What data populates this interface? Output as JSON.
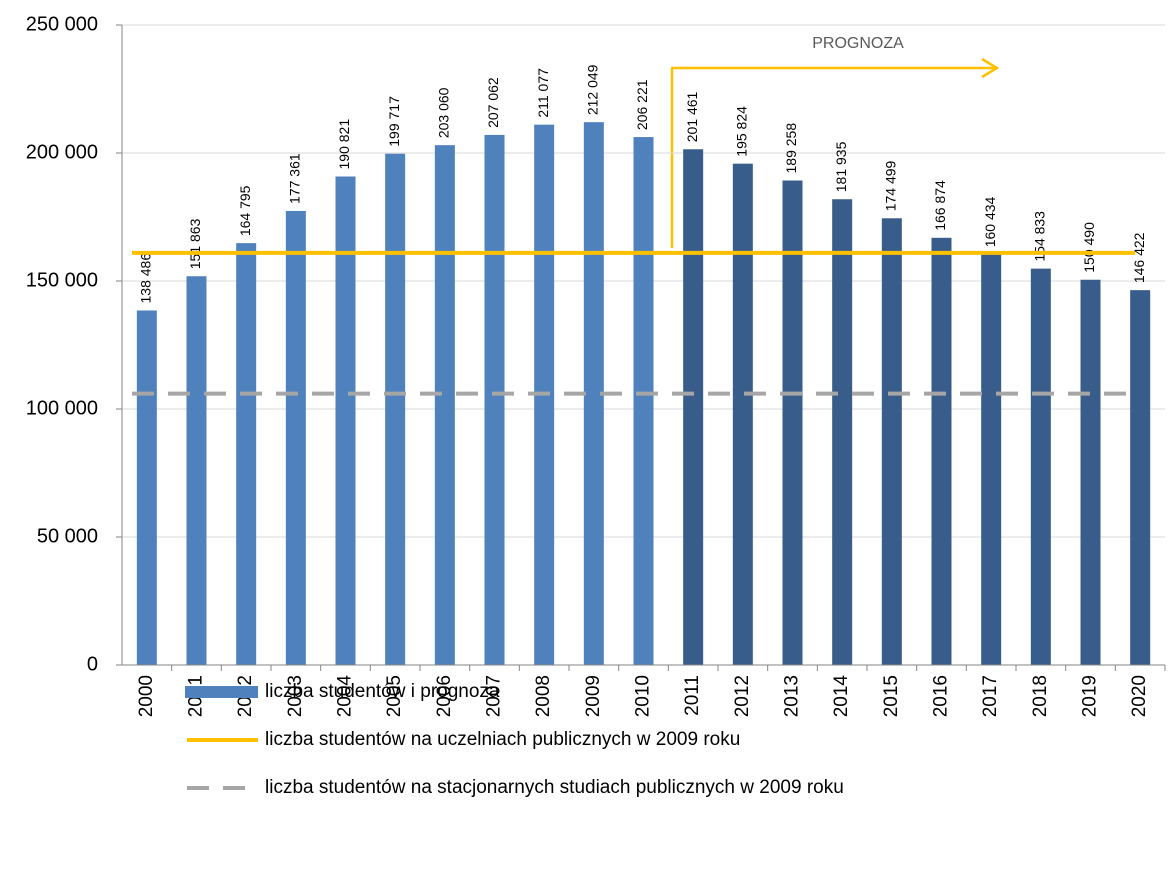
{
  "chart_data": {
    "type": "bar",
    "categories": [
      "2000",
      "2001",
      "2002",
      "2003",
      "2004",
      "2005",
      "2006",
      "2007",
      "2008",
      "2009",
      "2010",
      "2011",
      "2012",
      "2013",
      "2014",
      "2015",
      "2016",
      "2017",
      "2018",
      "2019",
      "2020"
    ],
    "series": [
      {
        "name": "liczba studentów i prognoza",
        "colors": [
          "#4f81bd",
          "#4f81bd",
          "#4f81bd",
          "#4f81bd",
          "#4f81bd",
          "#4f81bd",
          "#4f81bd",
          "#4f81bd",
          "#4f81bd",
          "#4f81bd",
          "#4f81bd",
          "#385d8a",
          "#385d8a",
          "#385d8a",
          "#385d8a",
          "#385d8a",
          "#385d8a",
          "#385d8a",
          "#385d8a",
          "#385d8a",
          "#385d8a"
        ],
        "values": [
          138486,
          151863,
          164795,
          177361,
          190821,
          199717,
          203060,
          207062,
          211077,
          212049,
          206221,
          201461,
          195824,
          189258,
          181935,
          174499,
          166874,
          160434,
          154833,
          150490,
          146422
        ],
        "value_labels": [
          "138 486",
          "151 863",
          "164 795",
          "177 361",
          "190 821",
          "199 717",
          "203 060",
          "207 062",
          "211 077",
          "212 049",
          "206 221",
          "201 461",
          "195 824",
          "189 258",
          "181 935",
          "174 499",
          "166 874",
          "160 434",
          "154 833",
          "150 490",
          "146 422"
        ]
      }
    ],
    "reference_lines": [
      {
        "name": "liczba studentów na uczelniach publicznych w 2009 roku",
        "value": 161000,
        "color": "#ffc000",
        "style": "solid"
      },
      {
        "name": "liczba studentów na stacjonarnych studiach publicznych w 2009 roku",
        "value": 106000,
        "color": "#a6a6a6",
        "style": "dashed"
      }
    ],
    "annotation": "PROGNOZA",
    "ylim": [
      0,
      250000
    ],
    "yticks": [
      0,
      {
        "value": 50000,
        "label": "50 000"
      },
      {
        "value": 100000,
        "label": "100 000"
      },
      {
        "value": 150000,
        "label": "150 000"
      },
      {
        "value": 200000,
        "label": "200 000"
      },
      {
        "value": 250000,
        "label": "250 000"
      }
    ],
    "grid": true
  }
}
